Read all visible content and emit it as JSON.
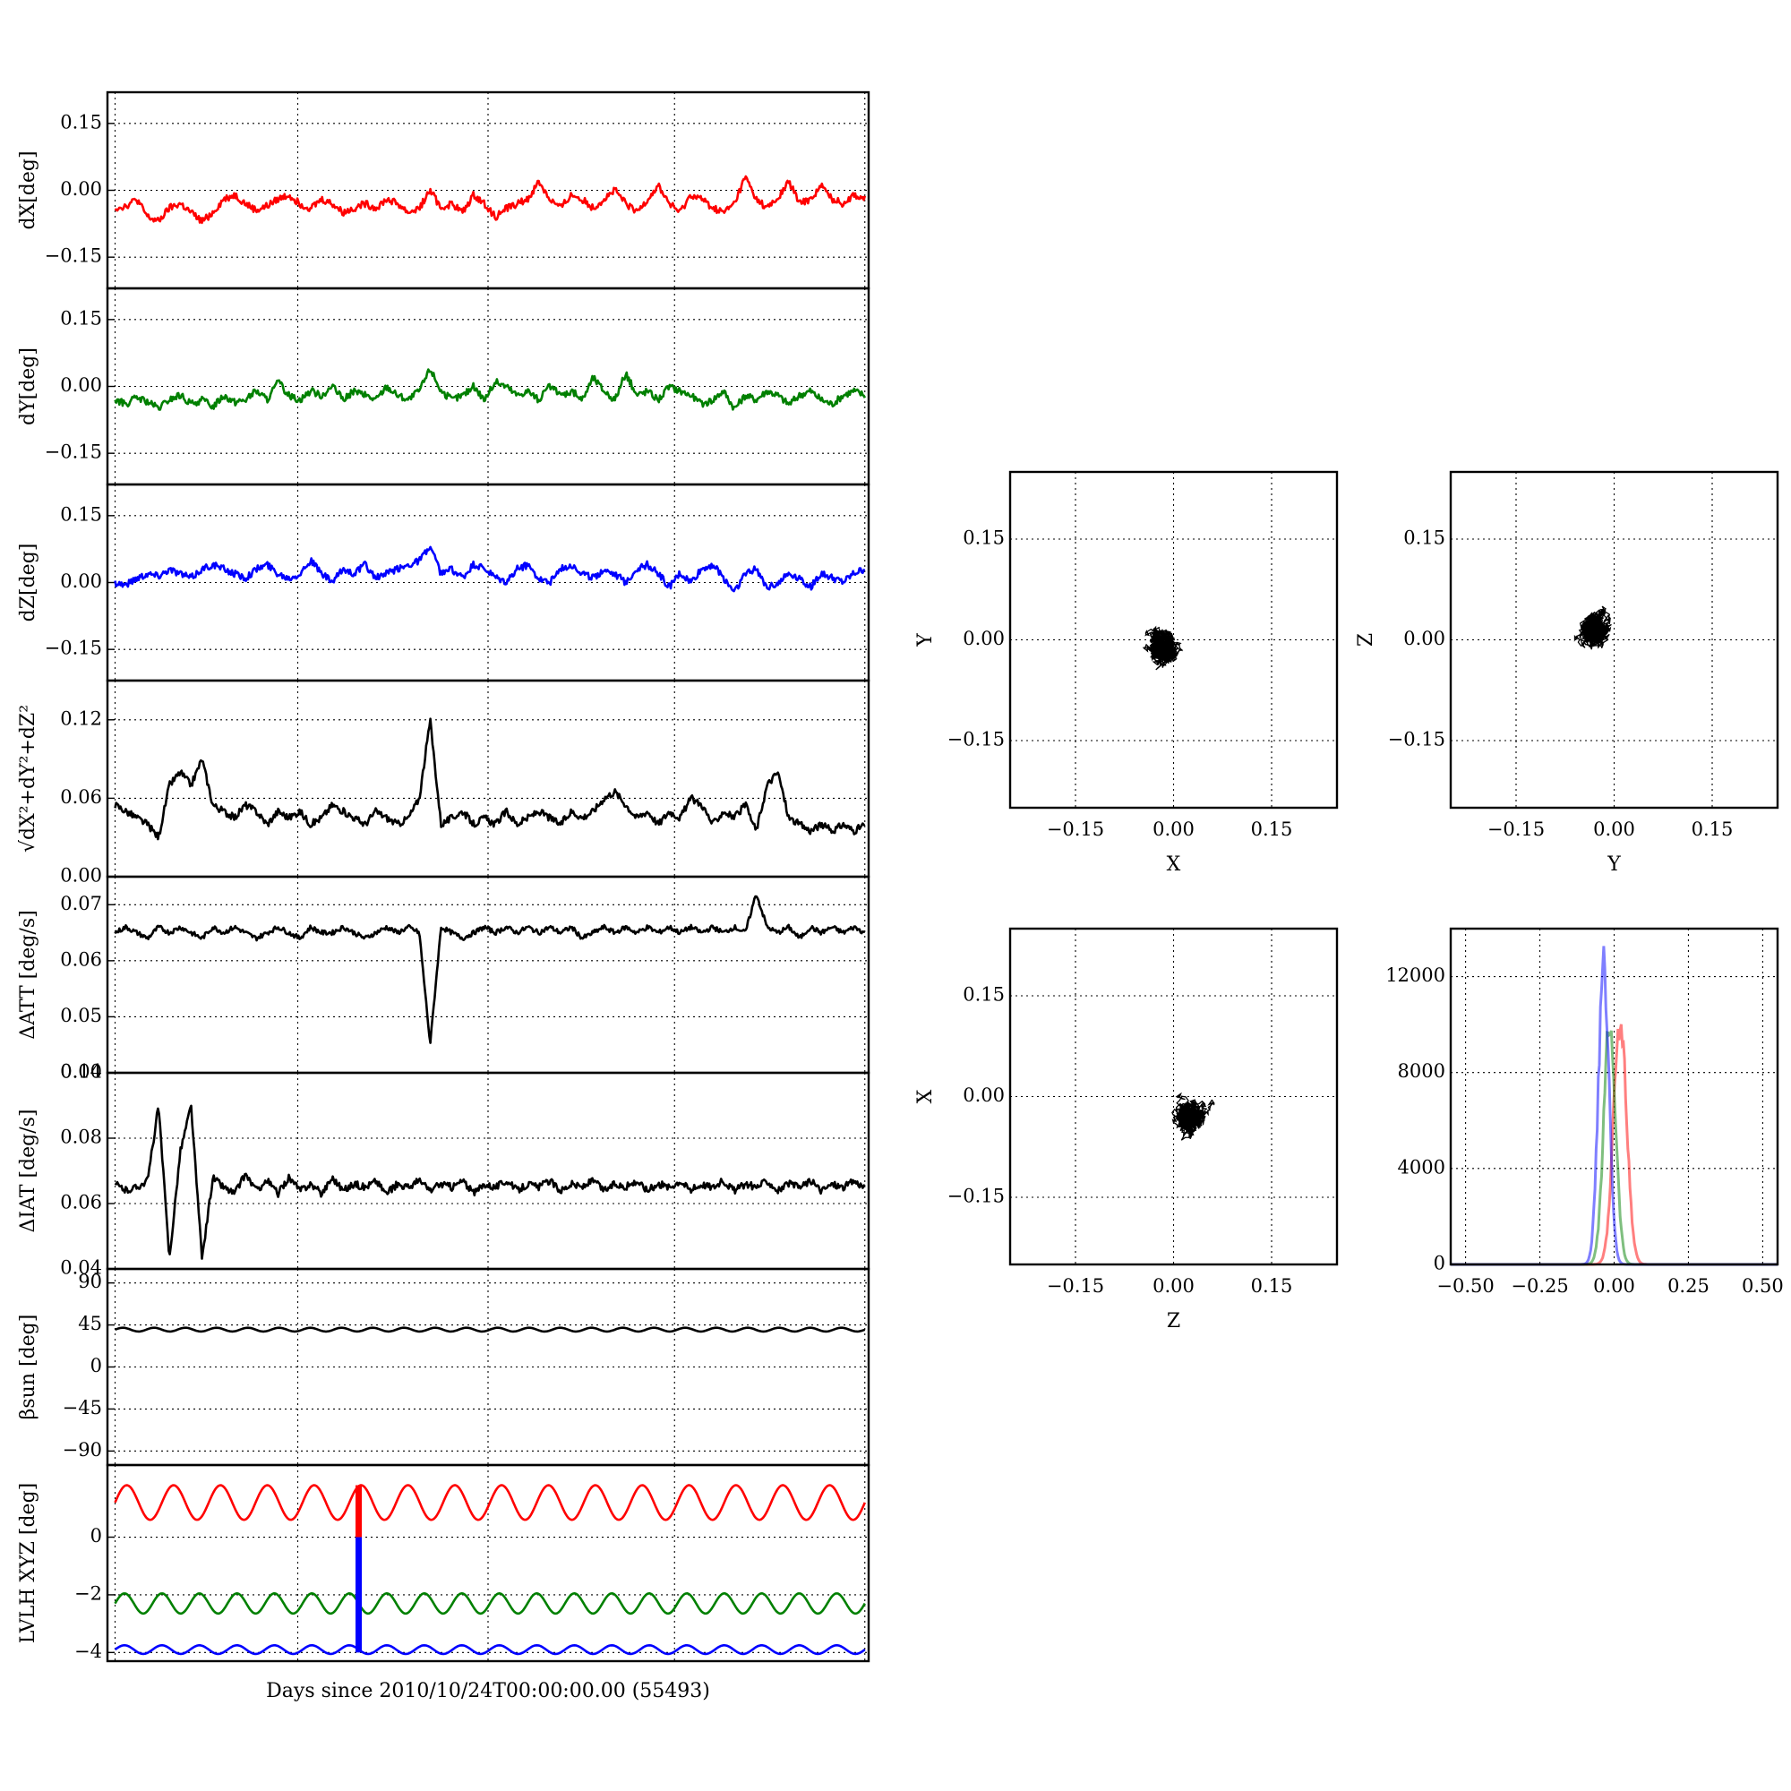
{
  "figure": {
    "xlabel": "Days since 2010/10/24T00:00:00.00 (55493)"
  },
  "colors": {
    "x": "#ff0000",
    "y": "#008000",
    "z": "#0000ff",
    "k": "#000000"
  },
  "chart_data": [
    {
      "id": "dx",
      "type": "line",
      "ylabel": "dX[deg]",
      "ylim": [
        -0.22,
        0.22
      ],
      "yticks": [
        0.15,
        0.0,
        -0.15
      ],
      "ytick_labels": [
        "0.15",
        "0.00",
        "−0.15"
      ],
      "grid": true,
      "series": [
        {
          "color": "x",
          "values": [
            -0.04,
            -0.035,
            -0.02,
            -0.06,
            -0.07,
            -0.04,
            -0.03,
            -0.05,
            -0.07,
            -0.05,
            -0.02,
            -0.01,
            -0.03,
            -0.045,
            -0.035,
            -0.02,
            -0.01,
            -0.03,
            -0.04,
            -0.02,
            -0.03,
            -0.05,
            -0.04,
            -0.03,
            -0.04,
            -0.02,
            -0.03,
            -0.05,
            -0.04,
            0.0,
            -0.04,
            -0.03,
            -0.05,
            -0.01,
            -0.03,
            -0.06,
            -0.04,
            -0.03,
            -0.02,
            0.02,
            -0.02,
            -0.04,
            -0.01,
            -0.02,
            -0.04,
            -0.02,
            0.0,
            -0.03,
            -0.05,
            -0.02,
            0.01,
            -0.03,
            -0.05,
            -0.01,
            -0.02,
            -0.04,
            -0.05,
            -0.03,
            0.03,
            -0.02,
            -0.04,
            -0.02,
            0.02,
            -0.03,
            -0.02,
            0.01,
            -0.02,
            -0.03,
            -0.01,
            -0.02
          ]
        }
      ]
    },
    {
      "id": "dy",
      "type": "line",
      "ylabel": "dY[deg]",
      "ylim": [
        -0.22,
        0.22
      ],
      "yticks": [
        0.15,
        0.0,
        -0.15
      ],
      "ytick_labels": [
        "0.15",
        "0.00",
        "−0.15"
      ],
      "grid": true,
      "series": [
        {
          "color": "y",
          "values": [
            -0.03,
            -0.04,
            -0.025,
            -0.035,
            -0.05,
            -0.03,
            -0.02,
            -0.04,
            -0.03,
            -0.045,
            -0.02,
            -0.035,
            -0.03,
            -0.01,
            -0.03,
            0.01,
            -0.02,
            -0.03,
            -0.01,
            -0.02,
            0.0,
            -0.03,
            -0.01,
            -0.02,
            -0.03,
            0.0,
            -0.02,
            -0.03,
            -0.01,
            0.04,
            -0.01,
            -0.03,
            -0.02,
            0.0,
            -0.03,
            0.01,
            0.0,
            -0.02,
            -0.01,
            -0.03,
            0.0,
            -0.02,
            -0.01,
            -0.03,
            0.02,
            -0.01,
            -0.03,
            0.03,
            -0.02,
            -0.01,
            -0.03,
            0.0,
            -0.01,
            -0.02,
            -0.04,
            -0.03,
            -0.01,
            -0.05,
            -0.02,
            -0.03,
            -0.01,
            -0.02,
            -0.04,
            -0.02,
            -0.01,
            -0.03,
            -0.04,
            -0.02,
            -0.01,
            -0.02
          ]
        }
      ]
    },
    {
      "id": "dz",
      "type": "line",
      "ylabel": "dZ[deg]",
      "ylim": [
        -0.22,
        0.22
      ],
      "yticks": [
        0.15,
        0.0,
        -0.15
      ],
      "ytick_labels": [
        "0.15",
        "0.00",
        "−0.15"
      ],
      "grid": true,
      "series": [
        {
          "color": "z",
          "values": [
            0.0,
            -0.005,
            0.01,
            0.02,
            0.015,
            0.03,
            0.02,
            0.01,
            0.03,
            0.04,
            0.03,
            0.02,
            0.01,
            0.03,
            0.04,
            0.02,
            0.01,
            0.02,
            0.05,
            0.02,
            0.0,
            0.03,
            0.02,
            0.04,
            0.01,
            0.02,
            0.03,
            0.04,
            0.05,
            0.08,
            0.02,
            0.03,
            0.01,
            0.04,
            0.03,
            0.01,
            0.0,
            0.03,
            0.04,
            0.01,
            0.0,
            0.03,
            0.04,
            0.02,
            0.01,
            0.03,
            0.02,
            0.0,
            0.03,
            0.04,
            0.02,
            -0.01,
            0.02,
            0.0,
            0.03,
            0.04,
            0.01,
            -0.02,
            0.02,
            0.03,
            -0.01,
            0.0,
            0.02,
            0.01,
            -0.01,
            0.02,
            0.01,
            0.0,
            0.02,
            0.03
          ]
        }
      ]
    },
    {
      "id": "dr",
      "type": "line",
      "ylabel": "√dX²+dY²+dZ²",
      "ylim": [
        0.0,
        0.15
      ],
      "yticks": [
        0.12,
        0.06,
        0.0
      ],
      "ytick_labels": [
        "0.12",
        "0.06",
        "0.00"
      ],
      "grid": true,
      "series": [
        {
          "color": "k",
          "values": [
            0.055,
            0.05,
            0.045,
            0.04,
            0.03,
            0.07,
            0.08,
            0.07,
            0.09,
            0.055,
            0.05,
            0.045,
            0.055,
            0.05,
            0.04,
            0.05,
            0.045,
            0.05,
            0.04,
            0.045,
            0.055,
            0.05,
            0.045,
            0.04,
            0.05,
            0.045,
            0.04,
            0.045,
            0.06,
            0.12,
            0.04,
            0.045,
            0.05,
            0.04,
            0.045,
            0.04,
            0.05,
            0.04,
            0.045,
            0.05,
            0.045,
            0.04,
            0.05,
            0.045,
            0.05,
            0.06,
            0.065,
            0.055,
            0.045,
            0.05,
            0.04,
            0.05,
            0.045,
            0.06,
            0.055,
            0.04,
            0.05,
            0.045,
            0.055,
            0.035,
            0.07,
            0.08,
            0.045,
            0.04,
            0.035,
            0.04,
            0.035,
            0.04,
            0.035,
            0.04
          ]
        }
      ]
    },
    {
      "id": "datt",
      "type": "line",
      "ylabel": "ΔATT [deg/s]",
      "ylim": [
        0.04,
        0.075
      ],
      "yticks": [
        0.07,
        0.06,
        0.05,
        0.04
      ],
      "ytick_labels": [
        "0.07",
        "0.06",
        "0.05",
        "0.04"
      ],
      "grid": true,
      "series": [
        {
          "color": "k",
          "values": [
            0.065,
            0.066,
            0.065,
            0.064,
            0.066,
            0.065,
            0.066,
            0.065,
            0.064,
            0.066,
            0.065,
            0.066,
            0.065,
            0.064,
            0.065,
            0.066,
            0.065,
            0.064,
            0.066,
            0.065,
            0.065,
            0.066,
            0.065,
            0.064,
            0.065,
            0.066,
            0.065,
            0.066,
            0.065,
            0.045,
            0.066,
            0.065,
            0.064,
            0.065,
            0.066,
            0.065,
            0.066,
            0.065,
            0.066,
            0.065,
            0.066,
            0.065,
            0.066,
            0.064,
            0.065,
            0.066,
            0.065,
            0.066,
            0.065,
            0.066,
            0.065,
            0.066,
            0.065,
            0.066,
            0.065,
            0.066,
            0.065,
            0.066,
            0.065,
            0.072,
            0.066,
            0.065,
            0.066,
            0.064,
            0.066,
            0.065,
            0.066,
            0.065,
            0.066,
            0.065
          ]
        }
      ]
    },
    {
      "id": "diat",
      "type": "line",
      "ylabel": "ΔIAT [deg/s]",
      "ylim": [
        0.04,
        0.1
      ],
      "yticks": [
        0.1,
        0.08,
        0.06,
        0.04
      ],
      "ytick_labels": [
        "0.10",
        "0.08",
        "0.06",
        "0.04"
      ],
      "grid": true,
      "series": [
        {
          "color": "k",
          "values": [
            0.066,
            0.064,
            0.065,
            0.067,
            0.09,
            0.043,
            0.076,
            0.09,
            0.043,
            0.068,
            0.065,
            0.063,
            0.069,
            0.064,
            0.067,
            0.063,
            0.068,
            0.064,
            0.066,
            0.063,
            0.068,
            0.064,
            0.066,
            0.065,
            0.067,
            0.063,
            0.066,
            0.065,
            0.067,
            0.064,
            0.066,
            0.065,
            0.067,
            0.063,
            0.066,
            0.065,
            0.067,
            0.064,
            0.066,
            0.065,
            0.067,
            0.064,
            0.066,
            0.065,
            0.067,
            0.064,
            0.066,
            0.065,
            0.067,
            0.064,
            0.066,
            0.065,
            0.067,
            0.064,
            0.066,
            0.065,
            0.067,
            0.064,
            0.066,
            0.065,
            0.067,
            0.064,
            0.066,
            0.065,
            0.067,
            0.064,
            0.066,
            0.065,
            0.067,
            0.065
          ]
        }
      ]
    },
    {
      "id": "beta",
      "type": "line",
      "ylabel": "βsun [deg]",
      "ylim": [
        -105,
        105
      ],
      "yticks": [
        90,
        45,
        0,
        -45,
        -90
      ],
      "ytick_labels": [
        "90",
        "45",
        "0",
        "−45",
        "−90"
      ],
      "grid": true,
      "series": [
        {
          "color": "k",
          "mean": 40,
          "amp": 2,
          "cycles": 24
        }
      ]
    },
    {
      "id": "lvlh",
      "type": "line",
      "ylabel": "LVLH XYZ [deg]",
      "ylim": [
        -4.3,
        2.5
      ],
      "yticks": [
        0,
        -2,
        -4
      ],
      "ytick_labels": [
        "0",
        "−2",
        "−4"
      ],
      "grid": true,
      "series": [
        {
          "color": "x",
          "mean": 1.2,
          "amp": 0.6,
          "cycles": 16
        },
        {
          "color": "y",
          "mean": -2.3,
          "amp": 0.35,
          "cycles": 20
        },
        {
          "color": "z",
          "mean": -3.9,
          "amp": 0.15,
          "cycles": 20
        }
      ],
      "vertical_markers": [
        {
          "x_frac": 0.33,
          "from": -4.0,
          "to": 1.8
        }
      ]
    },
    {
      "id": "scatter_xy",
      "type": "scatter",
      "xlabel": "X",
      "ylabel": "Y",
      "xlim": [
        -0.25,
        0.25
      ],
      "ylim": [
        -0.25,
        0.25
      ],
      "ticks": [
        -0.15,
        0.0,
        0.15
      ],
      "tick_labels": [
        "−0.15",
        "0.00",
        "0.15"
      ],
      "center": [
        -0.02,
        -0.01
      ],
      "spread": [
        0.022,
        0.022
      ],
      "n": 1400,
      "seed": 11,
      "grid": true
    },
    {
      "id": "scatter_yz",
      "type": "scatter",
      "xlabel": "Y",
      "ylabel": "Z",
      "xlim": [
        -0.25,
        0.25
      ],
      "ylim": [
        -0.25,
        0.25
      ],
      "ticks": [
        -0.15,
        0.0,
        0.15
      ],
      "tick_labels": [
        "−0.15",
        "0.00",
        "0.15"
      ],
      "center": [
        -0.03,
        0.015
      ],
      "spread": [
        0.02,
        0.02
      ],
      "n": 1400,
      "seed": 23,
      "grid": true
    },
    {
      "id": "scatter_zx",
      "type": "scatter",
      "xlabel": "Z",
      "ylabel": "X",
      "xlim": [
        -0.25,
        0.25
      ],
      "ylim": [
        -0.25,
        0.25
      ],
      "ticks": [
        -0.15,
        0.0,
        0.15
      ],
      "tick_labels": [
        "−0.15",
        "0.00",
        "0.15"
      ],
      "center": [
        0.02,
        -0.03
      ],
      "spread": [
        0.022,
        0.02
      ],
      "n": 1400,
      "seed": 37,
      "grid": true
    },
    {
      "id": "hist",
      "type": "line",
      "xlim": [
        -0.55,
        0.55
      ],
      "ylim": [
        0,
        14000
      ],
      "xticks": [
        -0.5,
        -0.25,
        0.0,
        0.25,
        0.5
      ],
      "xtick_labels": [
        "−0.50",
        "−0.25",
        "0.00",
        "0.25",
        "0.50"
      ],
      "yticks": [
        0,
        4000,
        8000,
        12000
      ],
      "ytick_labels": [
        "0",
        "4000",
        "8000",
        "12000"
      ],
      "grid": true,
      "series": [
        {
          "color": "x",
          "peak_x": 0.02,
          "peak_y": 10500,
          "width": 0.022
        },
        {
          "color": "y",
          "peak_x": -0.015,
          "peak_y": 10200,
          "width": 0.02
        },
        {
          "color": "z",
          "peak_x": -0.035,
          "peak_y": 12700,
          "width": 0.018
        }
      ]
    }
  ]
}
